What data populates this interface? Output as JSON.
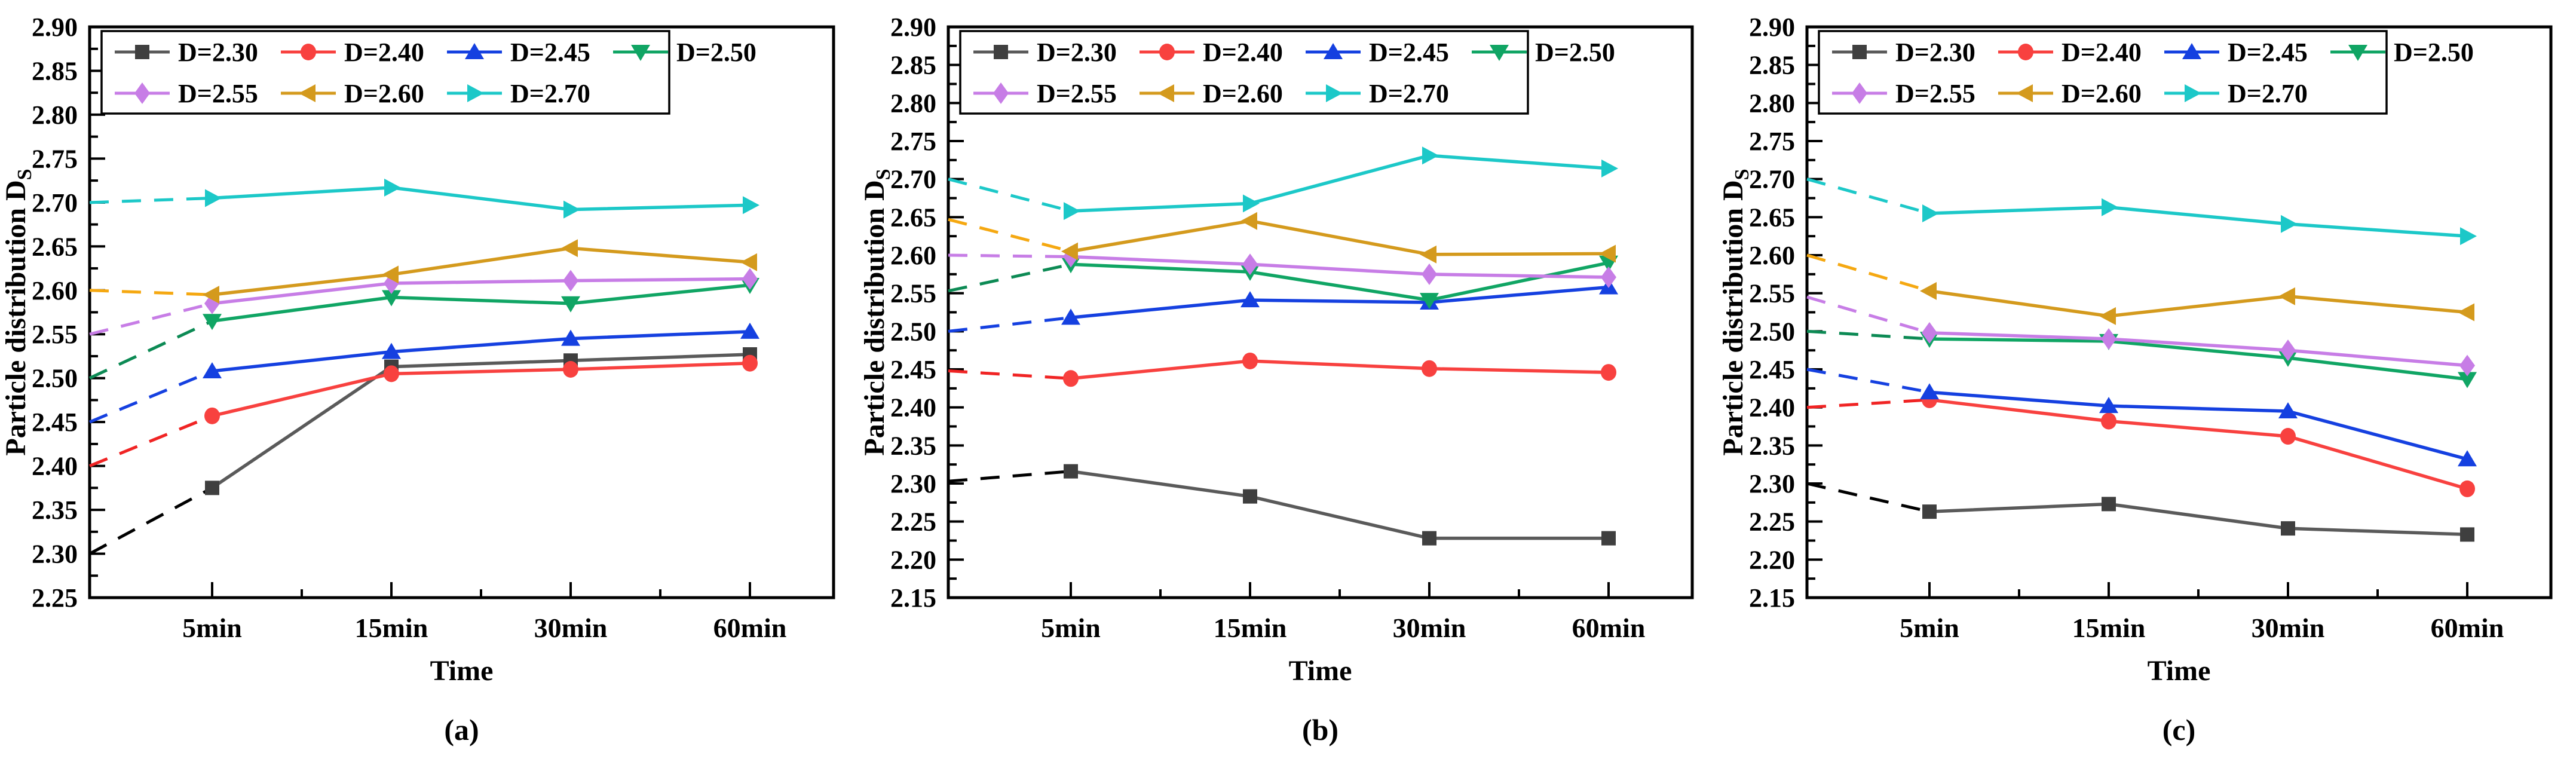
{
  "figure": {
    "background": "#ffffff",
    "frame_color": "#000000",
    "xlabel": "Time",
    "ylabel_main": "Particle distribution D",
    "ylabel_sub": "S",
    "x_categories": [
      "5min",
      "15min",
      "30min",
      "60min"
    ],
    "legend_rows": [
      4,
      3
    ],
    "legend_labels": [
      "D=2.30",
      "D=2.40",
      "D=2.45",
      "D=2.50",
      "D=2.55",
      "D=2.60",
      "D=2.70"
    ]
  },
  "chart_data": [
    {
      "id": "a",
      "caption": "(a)",
      "type": "line",
      "title": "",
      "xlabel": "Time",
      "ylabel": "Particle distribution DS",
      "categories": [
        "5min",
        "15min",
        "30min",
        "60min"
      ],
      "ylim": [
        2.25,
        2.9
      ],
      "ytick_step": 0.05,
      "grid": false,
      "legend_position": "top",
      "note": "dashed segment runs from the y-axis (initial value at t=0) to the 5min point",
      "series": [
        {
          "name": "D=2.30",
          "marker": "square",
          "color": "#3f3f3f",
          "line_color": "#5a5a5a",
          "dash_color": "#000000",
          "initial": 2.3,
          "values": [
            2.375,
            2.513,
            2.52,
            2.527
          ]
        },
        {
          "name": "D=2.40",
          "marker": "circle",
          "color": "#f8413f",
          "line_color": "#f8413f",
          "dash_color": "#f02424",
          "initial": 2.4,
          "values": [
            2.457,
            2.505,
            2.51,
            2.517
          ]
        },
        {
          "name": "D=2.45",
          "marker": "triangle-up",
          "color": "#1540e0",
          "line_color": "#1540e0",
          "dash_color": "#1540e0",
          "initial": 2.45,
          "values": [
            2.508,
            2.53,
            2.545,
            2.553
          ]
        },
        {
          "name": "D=2.50",
          "marker": "triangle-down",
          "color": "#10a564",
          "line_color": "#10a564",
          "dash_color": "#0c8a54",
          "initial": 2.5,
          "values": [
            2.565,
            2.592,
            2.585,
            2.606
          ]
        },
        {
          "name": "D=2.55",
          "marker": "diamond",
          "color": "#c77de6",
          "line_color": "#c77de6",
          "dash_color": "#c77de6",
          "initial": 2.55,
          "values": [
            2.585,
            2.608,
            2.611,
            2.613
          ]
        },
        {
          "name": "D=2.60",
          "marker": "triangle-left",
          "color": "#d49a1d",
          "line_color": "#d49a1d",
          "dash_color": "#f5a811",
          "initial": 2.6,
          "values": [
            2.595,
            2.618,
            2.648,
            2.632
          ]
        },
        {
          "name": "D=2.70",
          "marker": "triangle-right",
          "color": "#1cc8c8",
          "line_color": "#1cc8c8",
          "dash_color": "#1cc8c8",
          "initial": 2.7,
          "values": [
            2.705,
            2.717,
            2.692,
            2.697
          ]
        }
      ]
    },
    {
      "id": "b",
      "caption": "(b)",
      "type": "line",
      "title": "",
      "xlabel": "Time",
      "ylabel": "Particle distribution DS",
      "categories": [
        "5min",
        "15min",
        "30min",
        "60min"
      ],
      "ylim": [
        2.15,
        2.9
      ],
      "ytick_step": 0.05,
      "grid": false,
      "legend_position": "top",
      "note": "dashed segment runs from the y-axis (initial value at t=0) to the 5min point",
      "series": [
        {
          "name": "D=2.30",
          "marker": "square",
          "color": "#3f3f3f",
          "line_color": "#5a5a5a",
          "dash_color": "#000000",
          "initial": 2.303,
          "values": [
            2.316,
            2.283,
            2.228,
            2.228
          ]
        },
        {
          "name": "D=2.40",
          "marker": "circle",
          "color": "#f8413f",
          "line_color": "#f8413f",
          "dash_color": "#f02424",
          "initial": 2.448,
          "values": [
            2.438,
            2.461,
            2.451,
            2.446
          ]
        },
        {
          "name": "D=2.45",
          "marker": "triangle-up",
          "color": "#1540e0",
          "line_color": "#1540e0",
          "dash_color": "#1540e0",
          "initial": 2.5,
          "values": [
            2.518,
            2.541,
            2.538,
            2.558
          ]
        },
        {
          "name": "D=2.50",
          "marker": "triangle-down",
          "color": "#10a564",
          "line_color": "#10a564",
          "dash_color": "#0c8a54",
          "initial": 2.553,
          "values": [
            2.588,
            2.578,
            2.541,
            2.59
          ]
        },
        {
          "name": "D=2.55",
          "marker": "diamond",
          "color": "#c77de6",
          "line_color": "#c77de6",
          "dash_color": "#c77de6",
          "initial": 2.6,
          "values": [
            2.598,
            2.588,
            2.575,
            2.571
          ]
        },
        {
          "name": "D=2.60",
          "marker": "triangle-left",
          "color": "#d49a1d",
          "line_color": "#d49a1d",
          "dash_color": "#f5a811",
          "initial": 2.647,
          "values": [
            2.605,
            2.645,
            2.601,
            2.602
          ]
        },
        {
          "name": "D=2.70",
          "marker": "triangle-right",
          "color": "#1cc8c8",
          "line_color": "#1cc8c8",
          "dash_color": "#1cc8c8",
          "initial": 2.7,
          "values": [
            2.658,
            2.668,
            2.731,
            2.714
          ]
        }
      ]
    },
    {
      "id": "c",
      "caption": "(c)",
      "type": "line",
      "title": "",
      "xlabel": "Time",
      "ylabel": "Particle distribution DS",
      "categories": [
        "5min",
        "15min",
        "30min",
        "60min"
      ],
      "ylim": [
        2.15,
        2.9
      ],
      "ytick_step": 0.05,
      "grid": false,
      "legend_position": "top",
      "note": "dashed segment runs from the y-axis (initial value at t=0) to the 5min point",
      "series": [
        {
          "name": "D=2.30",
          "marker": "square",
          "color": "#3f3f3f",
          "line_color": "#5a5a5a",
          "dash_color": "#000000",
          "initial": 2.3,
          "values": [
            2.263,
            2.273,
            2.241,
            2.233
          ]
        },
        {
          "name": "D=2.40",
          "marker": "circle",
          "color": "#f8413f",
          "line_color": "#f8413f",
          "dash_color": "#f02424",
          "initial": 2.4,
          "values": [
            2.41,
            2.382,
            2.362,
            2.293
          ]
        },
        {
          "name": "D=2.45",
          "marker": "triangle-up",
          "color": "#1540e0",
          "line_color": "#1540e0",
          "dash_color": "#1540e0",
          "initial": 2.45,
          "values": [
            2.42,
            2.402,
            2.395,
            2.332
          ]
        },
        {
          "name": "D=2.50",
          "marker": "triangle-down",
          "color": "#10a564",
          "line_color": "#10a564",
          "dash_color": "#0c8a54",
          "initial": 2.5,
          "values": [
            2.49,
            2.487,
            2.465,
            2.437
          ]
        },
        {
          "name": "D=2.55",
          "marker": "diamond",
          "color": "#c77de6",
          "line_color": "#c77de6",
          "dash_color": "#c77de6",
          "initial": 2.545,
          "values": [
            2.498,
            2.49,
            2.475,
            2.455
          ]
        },
        {
          "name": "D=2.60",
          "marker": "triangle-left",
          "color": "#d49a1d",
          "line_color": "#d49a1d",
          "dash_color": "#f5a811",
          "initial": 2.6,
          "values": [
            2.553,
            2.52,
            2.546,
            2.525
          ]
        },
        {
          "name": "D=2.70",
          "marker": "triangle-right",
          "color": "#1cc8c8",
          "line_color": "#1cc8c8",
          "dash_color": "#1cc8c8",
          "initial": 2.7,
          "values": [
            2.655,
            2.663,
            2.641,
            2.625
          ]
        }
      ]
    }
  ]
}
